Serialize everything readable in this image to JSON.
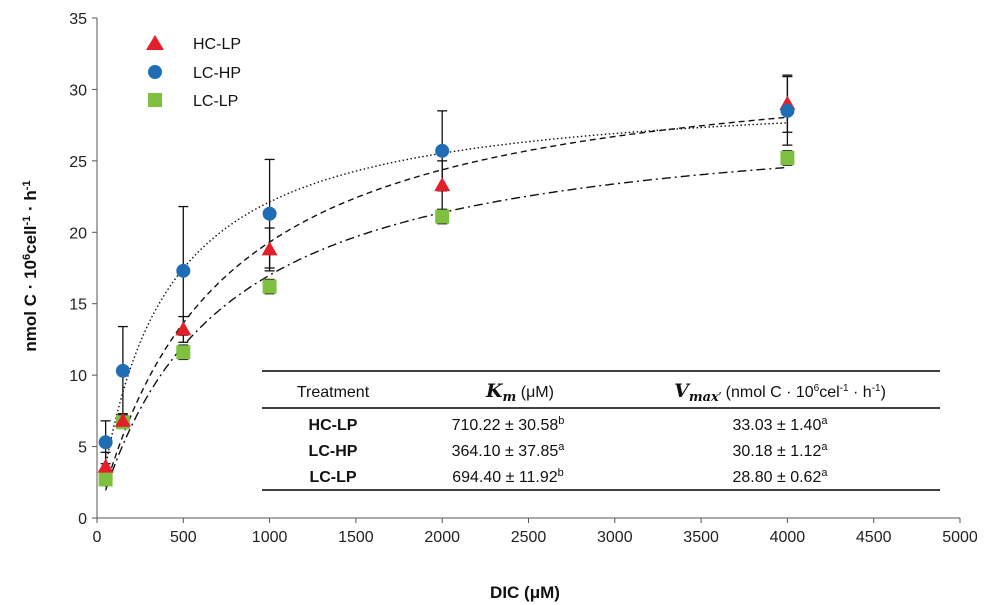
{
  "chart_data": {
    "type": "scatter",
    "title": "",
    "xlabel": "DIC (μM)",
    "ylabel_main": "nmol C · 10",
    "ylabel_sup1": "6",
    "ylabel_mid": "cell",
    "ylabel_sup2": "-1",
    "ylabel_mid2": " · h",
    "ylabel_sup3": "-1",
    "xlim": [
      0,
      5000
    ],
    "ylim": [
      0,
      35
    ],
    "xticks": [
      0,
      500,
      1000,
      1500,
      2000,
      2500,
      3000,
      3500,
      4000,
      4500,
      5000
    ],
    "yticks": [
      0,
      5,
      10,
      15,
      20,
      25,
      30,
      35
    ],
    "grid": false,
    "legend_position": "top-left",
    "series": [
      {
        "name": "HC-LP",
        "marker": "triangle",
        "color": "#e3202a",
        "x": [
          50,
          150,
          500,
          1000,
          2000,
          4000
        ],
        "y": [
          3.6,
          6.8,
          13.2,
          18.8,
          23.3,
          29.0
        ],
        "err": [
          1.0,
          0.5,
          0.9,
          1.5,
          1.7,
          2.0
        ],
        "fit": {
          "km": 710.22,
          "vmax": 33.03,
          "style": "dash"
        }
      },
      {
        "name": "LC-HP",
        "marker": "circle",
        "color": "#1f6eb5",
        "x": [
          50,
          150,
          500,
          1000,
          2000,
          4000
        ],
        "y": [
          5.3,
          10.3,
          17.3,
          21.3,
          25.7,
          28.5
        ],
        "err": [
          1.5,
          3.1,
          4.5,
          3.8,
          2.8,
          2.4
        ],
        "fit": {
          "km": 364.1,
          "vmax": 30.18,
          "style": "dot"
        }
      },
      {
        "name": "LC-LP",
        "marker": "square",
        "color": "#7fc041",
        "x": [
          50,
          150,
          500,
          1000,
          2000,
          4000
        ],
        "y": [
          2.7,
          6.7,
          11.6,
          16.2,
          21.1,
          25.2
        ],
        "err": [
          0.3,
          0.4,
          0.5,
          0.5,
          0.5,
          0.5
        ],
        "fit": {
          "km": 694.4,
          "vmax": 28.8,
          "style": "dashdot"
        }
      }
    ]
  },
  "table": {
    "headers": {
      "treatment": "Treatment",
      "km_sym": "K",
      "km_sub": "m",
      "km_unit": " (μM)",
      "vmax_sym": "V",
      "vmax_sub": "max",
      "vmax_prime": "′",
      "vmax_unit_a": " (nmol C · 10",
      "vmax_unit_sup1": "6",
      "vmax_unit_b": "cel",
      "vmax_unit_sup2": "-1",
      "vmax_unit_c": " · h",
      "vmax_unit_sup3": "-1",
      "vmax_unit_d": ")"
    },
    "rows": [
      {
        "treatment": "HC-LP",
        "km": "710.22 ± 30.58",
        "km_sup": "b",
        "vmax": "33.03 ± 1.40",
        "vmax_sup": "a"
      },
      {
        "treatment": "LC-HP",
        "km": "364.10 ± 37.85",
        "km_sup": "a",
        "vmax": "30.18 ± 1.12",
        "vmax_sup": "a"
      },
      {
        "treatment": "LC-LP",
        "km": "694.40 ± 11.92",
        "km_sup": "b",
        "vmax": "28.80 ± 0.62",
        "vmax_sup": "a"
      }
    ]
  }
}
